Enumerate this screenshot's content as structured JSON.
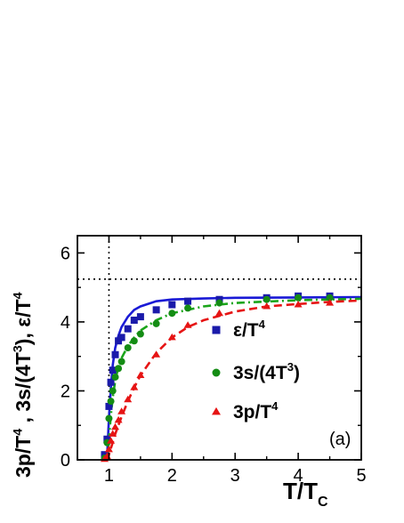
{
  "chart_data": {
    "type": "scatter",
    "panel_label": "(a)",
    "xlabel": {
      "base": "T/T",
      "sub": "C"
    },
    "ylabel": [
      {
        "base": "3p/T",
        "sup": "4",
        "after": " ,  "
      },
      {
        "base": "3s/(4T",
        "sup": "3",
        "after": "),  "
      },
      {
        "base": "ε/T",
        "sup": "4",
        "after": ""
      }
    ],
    "xlim": [
      0.5,
      5
    ],
    "ylim": [
      0,
      6.5
    ],
    "x_ticks": [
      "1",
      "2",
      "3",
      "4",
      "5"
    ],
    "y_ticks": [
      "0",
      "2",
      "4",
      "6"
    ],
    "reference_lines": {
      "vertical_x": 1.0,
      "horizontal_y": 5.24
    },
    "series": [
      {
        "name": {
          "base": "ε/T",
          "sup": "4",
          "after": ""
        },
        "marker": "square",
        "color": "#1a1aaa",
        "line_color": "#1a1ad6",
        "line_style": "solid",
        "x": [
          0.93,
          0.97,
          1.0,
          1.03,
          1.06,
          1.1,
          1.15,
          1.2,
          1.3,
          1.4,
          1.5,
          1.75,
          2.0,
          2.25,
          2.75,
          3.5,
          4.0,
          4.5
        ],
        "y": [
          0.15,
          0.6,
          1.55,
          2.25,
          2.6,
          3.05,
          3.45,
          3.55,
          3.8,
          4.05,
          4.15,
          4.35,
          4.5,
          4.6,
          4.65,
          4.7,
          4.75,
          4.75
        ],
        "fit_x": [
          0.97,
          1.0,
          1.03,
          1.06,
          1.1,
          1.15,
          1.2,
          1.3,
          1.4,
          1.5,
          1.75,
          2.0,
          2.5,
          3.0,
          4.0,
          5.0
        ],
        "fit_y": [
          0.05,
          1.2,
          2.1,
          2.75,
          3.25,
          3.6,
          3.85,
          4.15,
          4.35,
          4.45,
          4.6,
          4.65,
          4.68,
          4.7,
          4.71,
          4.72
        ]
      },
      {
        "name": {
          "base": "3s/(4T",
          "sup": "3",
          "after": ")"
        },
        "marker": "circle",
        "color": "#148c14",
        "line_color": "#1aa51a",
        "line_style": "dashdot",
        "x": [
          0.93,
          0.97,
          1.0,
          1.03,
          1.06,
          1.1,
          1.15,
          1.2,
          1.3,
          1.4,
          1.5,
          1.75,
          2.0,
          2.25,
          2.75,
          3.5,
          4.0,
          4.5
        ],
        "y": [
          0.05,
          0.5,
          1.2,
          1.7,
          2.0,
          2.4,
          2.65,
          2.85,
          3.25,
          3.45,
          3.65,
          3.95,
          4.25,
          4.4,
          4.55,
          4.65,
          4.7,
          4.7
        ],
        "fit_x": [
          0.98,
          1.0,
          1.03,
          1.06,
          1.1,
          1.15,
          1.2,
          1.3,
          1.4,
          1.5,
          1.75,
          2.0,
          2.5,
          3.0,
          4.0,
          5.0
        ],
        "fit_y": [
          0.05,
          0.6,
          1.3,
          1.8,
          2.3,
          2.7,
          2.95,
          3.3,
          3.55,
          3.75,
          4.05,
          4.25,
          4.45,
          4.55,
          4.63,
          4.67
        ]
      },
      {
        "name": {
          "base": "3p/T",
          "sup": "4",
          "after": ""
        },
        "marker": "triangle",
        "color": "#e61414",
        "line_color": "#e61414",
        "line_style": "dashed",
        "x": [
          0.93,
          0.97,
          1.0,
          1.03,
          1.06,
          1.1,
          1.15,
          1.2,
          1.3,
          1.4,
          1.5,
          1.75,
          2.0,
          2.25,
          2.75,
          3.5,
          4.0,
          4.5
        ],
        "y": [
          0.02,
          0.1,
          0.3,
          0.55,
          0.75,
          0.95,
          1.15,
          1.4,
          1.75,
          2.1,
          2.45,
          3.05,
          3.55,
          3.9,
          4.25,
          4.45,
          4.5,
          4.55
        ],
        "fit_x": [
          0.95,
          1.0,
          1.05,
          1.1,
          1.2,
          1.3,
          1.4,
          1.5,
          1.75,
          2.0,
          2.25,
          2.5,
          3.0,
          3.5,
          4.0,
          4.5,
          5.0
        ],
        "fit_y": [
          0.0,
          0.15,
          0.45,
          0.75,
          1.25,
          1.7,
          2.1,
          2.45,
          3.1,
          3.55,
          3.85,
          4.05,
          4.3,
          4.45,
          4.52,
          4.58,
          4.62
        ]
      }
    ]
  }
}
